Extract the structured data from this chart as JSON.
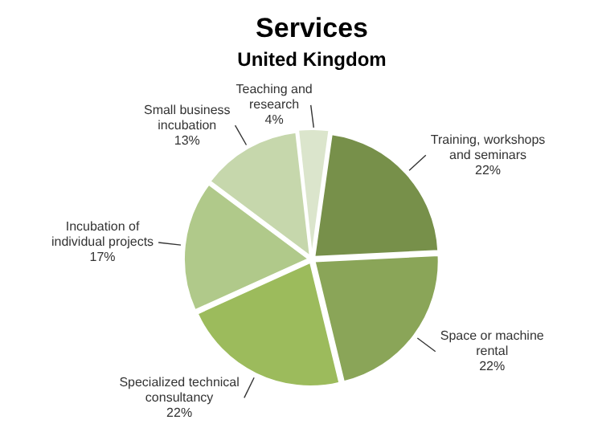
{
  "chart_data": {
    "type": "pie",
    "title": "Services",
    "subtitle": "United Kingdom",
    "categories": [
      "Training, workshops and seminars",
      "Space or machine rental",
      "Specialized technical consultancy",
      "Incubation of individual projects",
      "Small business incubation",
      "Teaching and research"
    ],
    "values": [
      22,
      22,
      22,
      17,
      13,
      4
    ],
    "value_labels": [
      "22%",
      "22%",
      "22%",
      "17%",
      "13%",
      "4%"
    ],
    "colors": [
      "#77904a",
      "#8aa558",
      "#9cbb5c",
      "#b0c98a",
      "#c6d7ac",
      "#dbe5cc"
    ],
    "legend": false
  }
}
